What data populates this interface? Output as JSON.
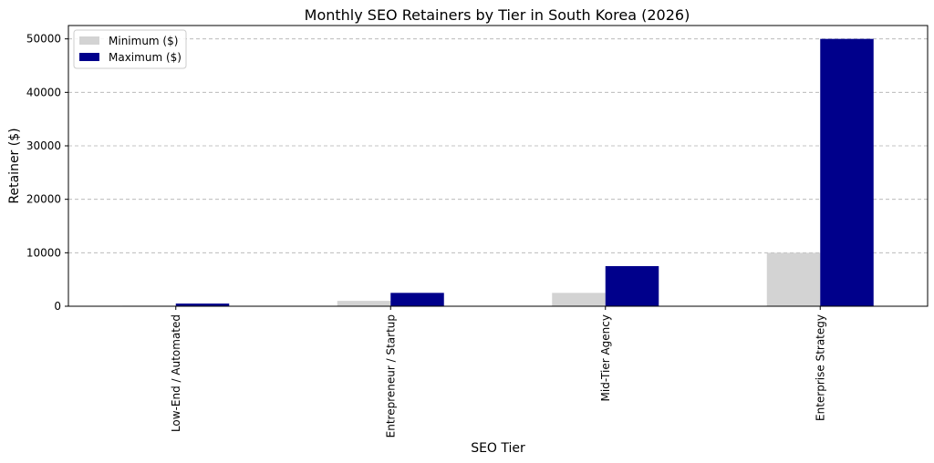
{
  "chart_data": {
    "type": "bar",
    "title": "Monthly SEO Retainers by Tier in South Korea (2026)",
    "xlabel": "SEO Tier",
    "ylabel": "Retainer ($)",
    "categories": [
      "Low-End / Automated",
      "Entrepreneur / Startup",
      "Mid-Tier Agency",
      "Enterprise Strategy"
    ],
    "series": [
      {
        "name": "Minimum ($)",
        "color": "#d3d3d3",
        "values": [
          100,
          1000,
          2500,
          10000
        ]
      },
      {
        "name": "Maximum ($)",
        "color": "#00008b",
        "values": [
          500,
          2500,
          7500,
          50000
        ]
      }
    ],
    "ylim": [
      0,
      52500
    ],
    "yticks": [
      0,
      10000,
      20000,
      30000,
      40000,
      50000
    ],
    "grid": "y-dashed",
    "legend": "top-left"
  }
}
